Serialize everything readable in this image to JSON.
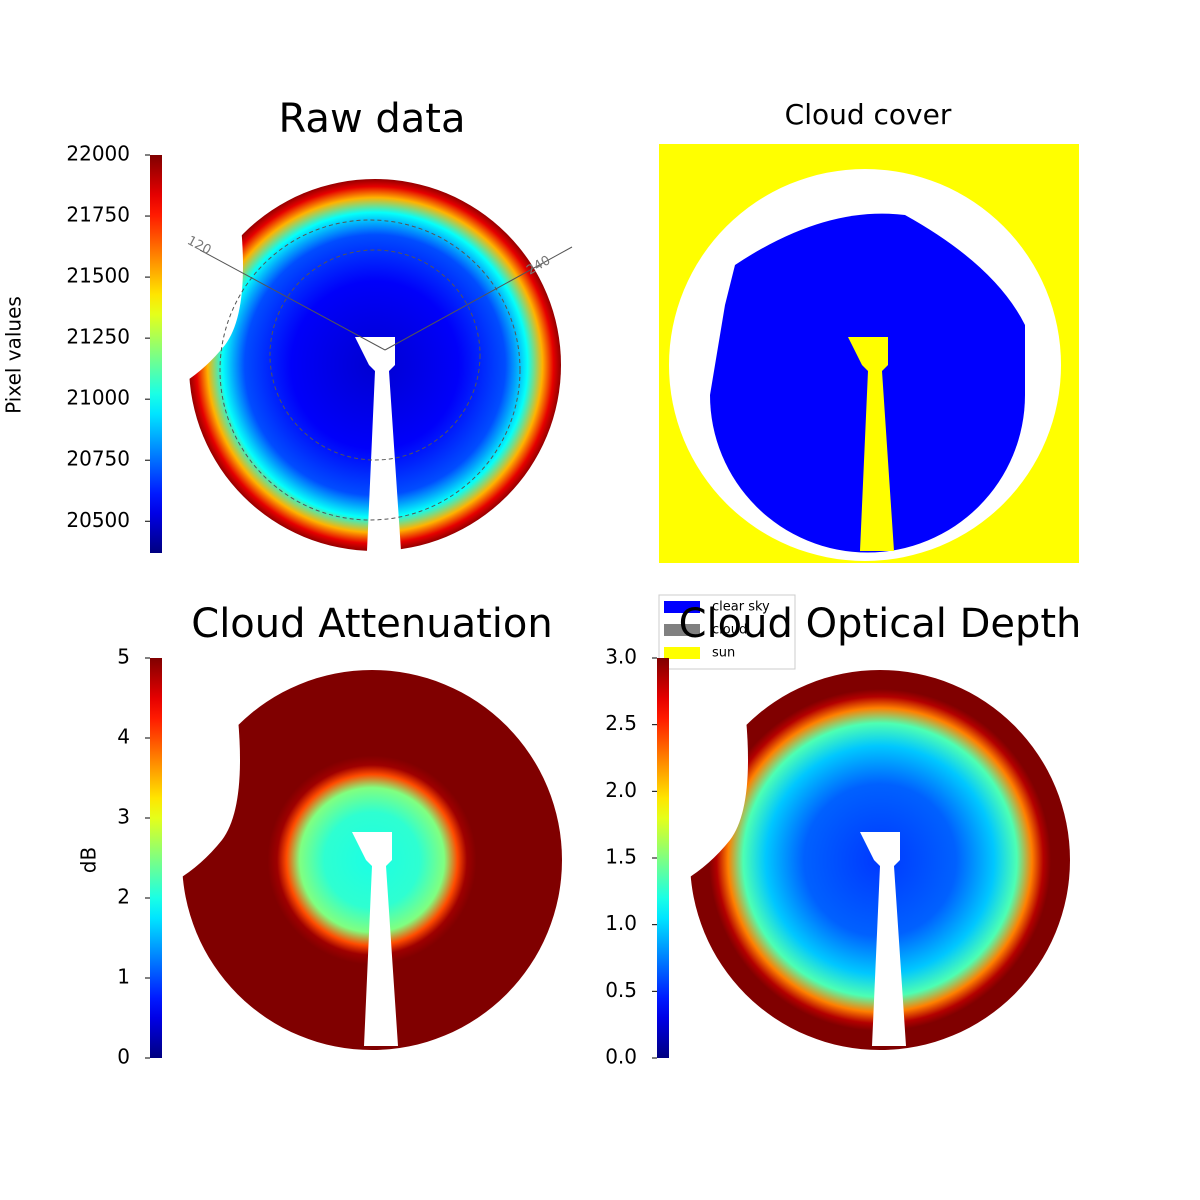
{
  "chart_data": [
    {
      "type": "image",
      "title": "Raw data",
      "colormap": "jet",
      "colorbar": {
        "label": "Pixel values",
        "lim": [
          20370,
          22000
        ],
        "ticks": [
          20500,
          20750,
          21000,
          21250,
          21500,
          21750,
          22000
        ]
      },
      "annotations": [
        "120",
        "240"
      ]
    },
    {
      "type": "image",
      "title": "Cloud cover",
      "background": "#ffff00",
      "legend": [
        {
          "name": "clear sky",
          "color": "#0000ff"
        },
        {
          "name": "cloud",
          "color": "#808080"
        },
        {
          "name": "sun",
          "color": "#ffff00"
        }
      ]
    },
    {
      "type": "image",
      "title": "Cloud Attenuation",
      "colormap": "jet",
      "colorbar": {
        "label": "dB",
        "lim": [
          0,
          5
        ],
        "ticks": [
          0,
          1,
          2,
          3,
          4,
          5
        ]
      }
    },
    {
      "type": "image",
      "title": "Cloud Optical Depth",
      "colormap": "jet",
      "colorbar": {
        "lim": [
          0,
          3
        ],
        "ticks": [
          {
            "value": 0,
            "label": "0.0"
          },
          {
            "value": 0.5,
            "label": "0.5"
          },
          {
            "value": 1,
            "label": "1.0"
          },
          {
            "value": 1.5,
            "label": "1.5"
          },
          {
            "value": 2,
            "label": "2.0"
          },
          {
            "value": 2.5,
            "label": "2.5"
          },
          {
            "value": 3,
            "label": "3.0"
          }
        ]
      }
    }
  ]
}
